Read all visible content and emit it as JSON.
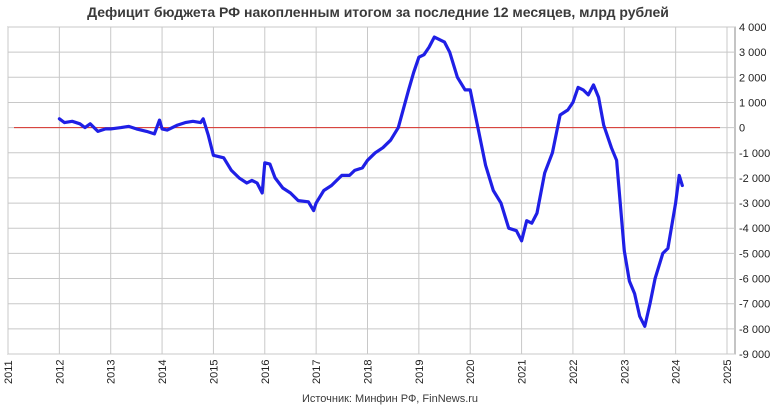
{
  "chart_data": {
    "type": "line",
    "title": "Дефицит бюджета РФ накопленным итогом за последние 12 месяцев, млрд рублей",
    "source": "Источник: Минфин РФ, FinNews.ru",
    "xlabel": "",
    "ylabel": "",
    "x_ticks": [
      "2011",
      "2012",
      "2013",
      "2014",
      "2015",
      "2016",
      "2017",
      "2018",
      "2019",
      "2020",
      "2021",
      "2022",
      "2023",
      "2024",
      "2025"
    ],
    "y_ticks": [
      "4 000",
      "3 000",
      "2 000",
      "1 000",
      "0",
      "-1 000",
      "-2 000",
      "-3 000",
      "-4 000",
      "-5 000",
      "-6 000",
      "-7 000",
      "-8 000",
      "-9 000"
    ],
    "xlim": [
      2011,
      2025
    ],
    "ylim": [
      -9000,
      4000
    ],
    "grid": true,
    "colors": {
      "series": "#1f1fe6",
      "zero_line": "#d9302a",
      "grid": "#c8c8c8",
      "frame": "#8a8a8a"
    },
    "series": [
      {
        "x": [
          2012.0,
          2012.1,
          2012.25,
          2012.4,
          2012.5,
          2012.6,
          2012.75,
          2012.9,
          2013.0,
          2013.2,
          2013.35,
          2013.5,
          2013.7,
          2013.85,
          2013.95,
          2014.0,
          2014.1,
          2014.3,
          2014.45,
          2014.6,
          2014.75,
          2014.8,
          2014.9,
          2015.0,
          2015.2,
          2015.35,
          2015.5,
          2015.65,
          2015.75,
          2015.85,
          2015.95,
          2016.0,
          2016.1,
          2016.2,
          2016.35,
          2016.5,
          2016.65,
          2016.85,
          2016.95,
          2017.0,
          2017.15,
          2017.3,
          2017.5,
          2017.65,
          2017.75,
          2017.9,
          2018.0,
          2018.15,
          2018.3,
          2018.45,
          2018.6,
          2018.8,
          2018.9,
          2019.0,
          2019.1,
          2019.2,
          2019.3,
          2019.4,
          2019.5,
          2019.6,
          2019.75,
          2019.9,
          2020.0,
          2020.15,
          2020.3,
          2020.45,
          2020.6,
          2020.75,
          2020.9,
          2021.0,
          2021.1,
          2021.2,
          2021.3,
          2021.45,
          2021.6,
          2021.75,
          2021.9,
          2022.0,
          2022.1,
          2022.2,
          2022.3,
          2022.4,
          2022.5,
          2022.6,
          2022.75,
          2022.85,
          2023.0,
          2023.1,
          2023.2,
          2023.3,
          2023.4,
          2023.5,
          2023.6,
          2023.75,
          2023.85,
          2024.0,
          2024.07,
          2024.13
        ],
        "values": [
          350,
          200,
          250,
          150,
          0,
          150,
          -150,
          -50,
          -50,
          0,
          50,
          -50,
          -150,
          -250,
          300,
          -50,
          -100,
          100,
          200,
          250,
          200,
          350,
          -300,
          -1100,
          -1200,
          -1700,
          -2000,
          -2200,
          -2100,
          -2200,
          -2600,
          -1400,
          -1450,
          -2000,
          -2400,
          -2600,
          -2900,
          -2950,
          -3300,
          -3000,
          -2500,
          -2300,
          -1900,
          -1900,
          -1700,
          -1600,
          -1300,
          -1000,
          -800,
          -500,
          0,
          1500,
          2200,
          2800,
          2900,
          3200,
          3600,
          3500,
          3400,
          3000,
          2000,
          1500,
          1500,
          0,
          -1500,
          -2500,
          -3000,
          -4000,
          -4100,
          -4500,
          -3700,
          -3800,
          -3400,
          -1800,
          -1000,
          500,
          700,
          1000,
          1600,
          1500,
          1300,
          1700,
          1200,
          100,
          -800,
          -1300,
          -4900,
          -6100,
          -6600,
          -7500,
          -7900,
          -7000,
          -6000,
          -5000,
          -4800,
          -3000,
          -1900,
          -2300
        ]
      }
    ]
  }
}
